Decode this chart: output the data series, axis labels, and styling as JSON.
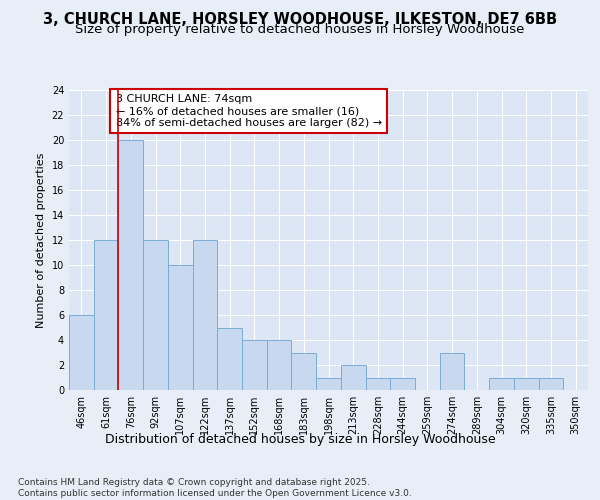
{
  "title": "3, CHURCH LANE, HORSLEY WOODHOUSE, ILKESTON, DE7 6BB",
  "subtitle": "Size of property relative to detached houses in Horsley Woodhouse",
  "xlabel": "Distribution of detached houses by size in Horsley Woodhouse",
  "ylabel": "Number of detached properties",
  "categories": [
    "46sqm",
    "61sqm",
    "76sqm",
    "92sqm",
    "107sqm",
    "122sqm",
    "137sqm",
    "152sqm",
    "168sqm",
    "183sqm",
    "198sqm",
    "213sqm",
    "228sqm",
    "244sqm",
    "259sqm",
    "274sqm",
    "289sqm",
    "304sqm",
    "320sqm",
    "335sqm",
    "350sqm"
  ],
  "values": [
    6,
    12,
    20,
    12,
    10,
    12,
    5,
    4,
    4,
    3,
    1,
    2,
    1,
    1,
    0,
    3,
    0,
    1,
    1,
    1,
    0
  ],
  "bar_color": "#c8d8ee",
  "bar_edge_color": "#7aadd4",
  "red_line_x": 2,
  "annotation_text": "3 CHURCH LANE: 74sqm\n← 16% of detached houses are smaller (16)\n84% of semi-detached houses are larger (82) →",
  "annotation_box_color": "#ffffff",
  "annotation_box_edge_color": "#cc0000",
  "ylim": [
    0,
    24
  ],
  "yticks": [
    0,
    2,
    4,
    6,
    8,
    10,
    12,
    14,
    16,
    18,
    20,
    22,
    24
  ],
  "background_color": "#e8eef7",
  "plot_background_color": "#dce6f4",
  "grid_color": "#ffffff",
  "footer": "Contains HM Land Registry data © Crown copyright and database right 2025.\nContains public sector information licensed under the Open Government Licence v3.0.",
  "title_fontsize": 10.5,
  "subtitle_fontsize": 9.5,
  "xlabel_fontsize": 9,
  "ylabel_fontsize": 8,
  "tick_fontsize": 7,
  "annotation_fontsize": 8,
  "footer_fontsize": 6.5
}
